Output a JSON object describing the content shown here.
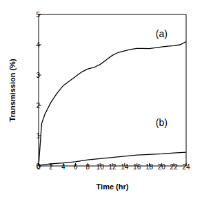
{
  "chart_data": {
    "type": "line",
    "x_label": "Time (hr)",
    "y_label": "Transmission (%)",
    "xlim": [
      0,
      24
    ],
    "xticks": [
      0,
      2,
      4,
      6,
      8,
      10,
      12,
      14,
      16,
      18,
      20,
      22,
      24
    ],
    "ylim": [
      0,
      5
    ],
    "yticks": [
      0,
      1,
      2,
      3,
      4,
      5
    ],
    "grid": false,
    "series": [
      {
        "name": "(a)",
        "color": "#000000",
        "x": [
          0,
          0.5,
          1,
          2,
          3,
          4,
          5,
          6,
          7,
          8,
          9,
          10,
          11,
          12,
          13,
          14,
          15,
          16,
          17,
          18,
          19,
          20,
          21,
          22,
          23,
          24
        ],
        "values": [
          0,
          1.4,
          1.7,
          2.1,
          2.4,
          2.65,
          2.8,
          2.95,
          3.1,
          3.2,
          3.25,
          3.35,
          3.5,
          3.65,
          3.75,
          3.8,
          3.85,
          3.88,
          3.88,
          3.87,
          3.9,
          3.93,
          3.95,
          3.97,
          4.0,
          4.1
        ]
      },
      {
        "name": "(b)",
        "color": "#000000",
        "x": [
          0,
          2,
          4,
          6,
          8,
          10,
          12,
          14,
          16,
          18,
          20,
          22,
          24
        ],
        "values": [
          0.02,
          0.07,
          0.1,
          0.14,
          0.2,
          0.24,
          0.28,
          0.32,
          0.36,
          0.38,
          0.4,
          0.43,
          0.45
        ]
      }
    ]
  }
}
